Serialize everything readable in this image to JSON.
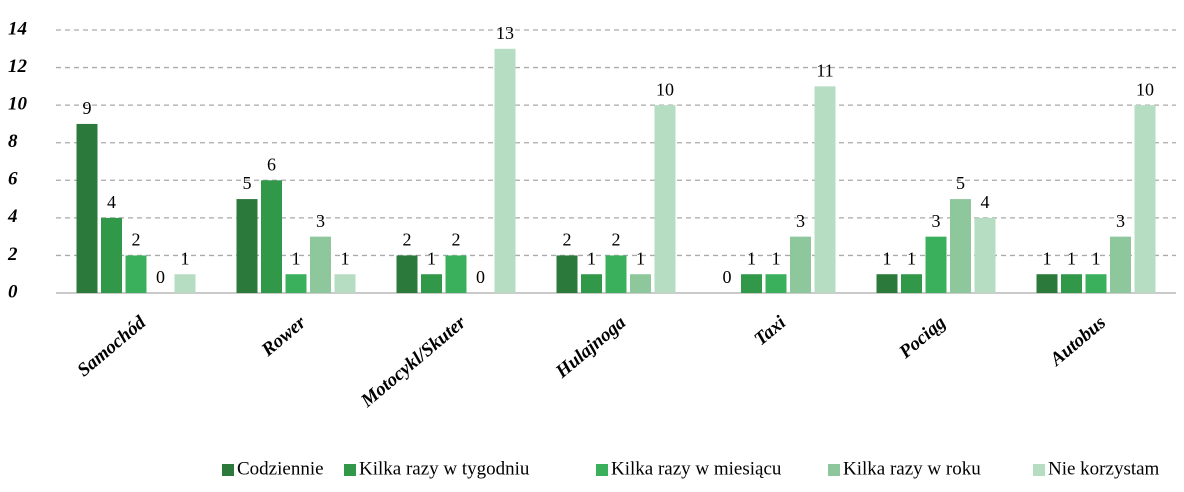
{
  "chart_data": {
    "type": "bar",
    "categories": [
      "Samochód",
      "Rower",
      "Motocykl/Skuter",
      "Hulajnoga",
      "Taxi",
      "Pociąg",
      "Autobus"
    ],
    "series": [
      {
        "name": "Codziennie",
        "color": "#2b7a3b",
        "values": [
          9,
          5,
          2,
          2,
          0,
          1,
          1
        ]
      },
      {
        "name": "Kilka razy w tygodniu",
        "color": "#31984a",
        "values": [
          4,
          6,
          1,
          1,
          1,
          1,
          1
        ]
      },
      {
        "name": "Kilka razy w miesiącu",
        "color": "#3bb05c",
        "values": [
          2,
          1,
          2,
          2,
          1,
          3,
          1
        ]
      },
      {
        "name": "Kilka razy w roku",
        "color": "#8ec79c",
        "values": [
          0,
          3,
          0,
          1,
          3,
          5,
          3
        ]
      },
      {
        "name": "Nie korzystam",
        "color": "#b6dcc1",
        "values": [
          1,
          1,
          13,
          10,
          11,
          4,
          10
        ]
      }
    ],
    "ylim": [
      0,
      14
    ],
    "yticks": [
      0,
      2,
      4,
      6,
      8,
      10,
      12,
      14
    ],
    "grid": true,
    "legend": "bottom"
  }
}
